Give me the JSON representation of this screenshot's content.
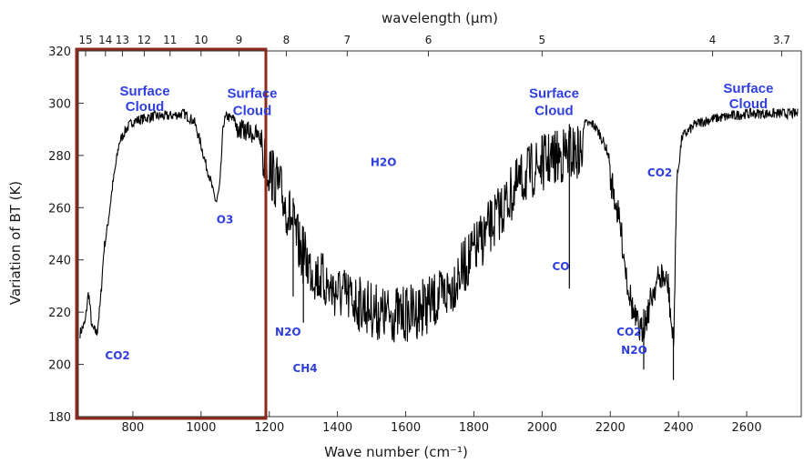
{
  "chart_data": {
    "type": "line",
    "xlabel": "Wave number (cm⁻¹)",
    "x2label": "wavelength (µm)",
    "ylabel": "Variation of BT (K)",
    "xlim": [
      640,
      2760
    ],
    "ylim": [
      180,
      320
    ],
    "x_ticks": [
      "800",
      "1000",
      "1200",
      "1400",
      "1600",
      "1800",
      "2000",
      "2200",
      "2400",
      "2600"
    ],
    "y_ticks": [
      "180",
      "200",
      "220",
      "240",
      "260",
      "280",
      "300",
      "320"
    ],
    "top_ticks": [
      "15",
      "14",
      "13",
      "12",
      "11",
      "10",
      "9",
      "8",
      "7",
      "6",
      "5",
      "4",
      "3.7"
    ],
    "grid": false,
    "line_color": "#000000",
    "annotation_color": "#2f3fe0",
    "highlight_box": {
      "x_range": [
        640,
        1190
      ],
      "color": "#8b2a1a"
    },
    "series": [
      {
        "x": [
          645,
          660,
          670,
          680,
          695,
          705,
          715,
          725,
          740,
          760,
          780,
          800,
          830,
          860,
          900,
          950,
          980,
          1000,
          1015,
          1025,
          1035,
          1045,
          1055,
          1065,
          1075,
          1090,
          1110,
          1140,
          1160,
          1180,
          1200,
          1230,
          1260,
          1290,
          1320,
          1350,
          1380,
          1410,
          1440,
          1470,
          1500,
          1530,
          1560,
          1600,
          1640,
          1670,
          1700,
          1730,
          1760,
          1800,
          1840,
          1880,
          1920,
          1960,
          2000,
          2040,
          2080,
          2120,
          2150,
          2170,
          2190,
          2210,
          2230,
          2250,
          2270,
          2290,
          2310,
          2330,
          2350,
          2370,
          2385,
          2395,
          2410,
          2450,
          2500,
          2550,
          2600,
          2650,
          2700,
          2750
        ],
        "y": [
          212,
          216,
          228,
          214,
          212,
          224,
          244,
          252,
          268,
          285,
          290,
          293,
          294,
          295,
          295,
          296,
          293,
          284,
          276,
          272,
          266,
          262,
          268,
          292,
          295,
          294,
          294,
          293,
          292,
          290,
          286,
          278,
          268,
          255,
          248,
          244,
          240,
          238,
          236,
          234,
          232,
          230,
          230,
          230,
          232,
          234,
          236,
          240,
          246,
          254,
          262,
          270,
          278,
          284,
          288,
          290,
          292,
          292,
          292,
          288,
          282,
          272,
          258,
          238,
          224,
          218,
          226,
          236,
          240,
          236,
          212,
          270,
          287,
          292,
          294,
          295,
          296,
          296,
          296,
          296
        ]
      }
    ],
    "annotations": [
      {
        "text": "Surface",
        "x": 835,
        "y": 303,
        "style": "bold"
      },
      {
        "text": "Cloud",
        "x": 835,
        "y": 297,
        "style": "bold"
      },
      {
        "text": "Surface",
        "x": 1150,
        "y": 302,
        "style": "bold"
      },
      {
        "text": "Cloud",
        "x": 1150,
        "y": 295.5,
        "style": "bold"
      },
      {
        "text": "Surface",
        "x": 2035,
        "y": 302,
        "style": "bold"
      },
      {
        "text": "Cloud",
        "x": 2035,
        "y": 295.5,
        "style": "bold"
      },
      {
        "text": "Surface",
        "x": 2605,
        "y": 304,
        "style": "bold"
      },
      {
        "text": "Cloud",
        "x": 2605,
        "y": 298,
        "style": "bold"
      },
      {
        "text": "H2O",
        "x": 1535,
        "y": 276,
        "style": "gas"
      },
      {
        "text": "O3",
        "x": 1070,
        "y": 254,
        "style": "gas"
      },
      {
        "text": "CO",
        "x": 2055,
        "y": 236,
        "style": "gas"
      },
      {
        "text": "CO2",
        "x": 2345,
        "y": 272,
        "style": "gas"
      },
      {
        "text": "N2O",
        "x": 1255,
        "y": 211,
        "style": "gas"
      },
      {
        "text": "CH4",
        "x": 1305,
        "y": 197,
        "style": "gas"
      },
      {
        "text": "CO2",
        "x": 755,
        "y": 202,
        "style": "gas"
      },
      {
        "text": "CO2",
        "x": 2255,
        "y": 211,
        "style": "gas"
      },
      {
        "text": "N2O",
        "x": 2270,
        "y": 204,
        "style": "gas"
      }
    ]
  }
}
